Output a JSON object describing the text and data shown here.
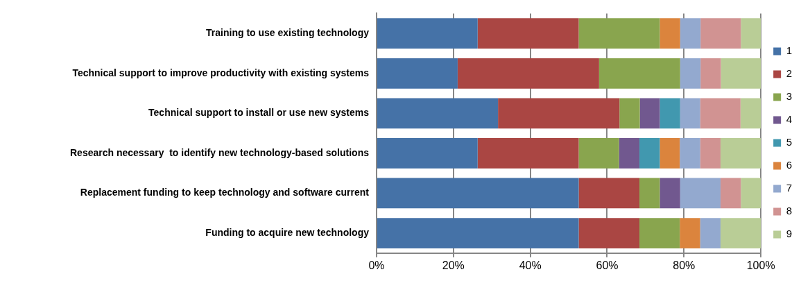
{
  "chart_data": {
    "type": "bar",
    "orientation": "horizontal",
    "stacked": true,
    "categories": [
      "Training to use existing technology",
      "Technical support to improve productivity with existing systems",
      "Technical support to install or use new systems",
      "Research necessary  to identify new technology-based solutions",
      "Replacement funding to keep technology and software current",
      "Funding to acquire new technology"
    ],
    "series": [
      {
        "name": "1",
        "color": "#4572a7",
        "values": [
          26.3,
          21.1,
          31.6,
          26.3,
          52.6,
          52.6
        ]
      },
      {
        "name": "2",
        "color": "#aa4643",
        "values": [
          26.3,
          36.8,
          31.6,
          26.3,
          15.8,
          15.8
        ]
      },
      {
        "name": "3",
        "color": "#89a54e",
        "values": [
          21.1,
          21.1,
          5.3,
          10.5,
          5.3,
          10.5
        ]
      },
      {
        "name": "4",
        "color": "#71588f",
        "values": [
          0,
          0,
          5.2,
          5.3,
          5.3,
          0
        ]
      },
      {
        "name": "5",
        "color": "#4198af",
        "values": [
          0,
          0,
          5.3,
          5.3,
          0,
          0
        ]
      },
      {
        "name": "6",
        "color": "#db843d",
        "values": [
          5.3,
          0,
          0,
          5.2,
          0,
          5.3
        ]
      },
      {
        "name": "7",
        "color": "#93a9cf",
        "values": [
          5.3,
          5.3,
          5.2,
          5.3,
          10.5,
          5.3
        ]
      },
      {
        "name": "8",
        "color": "#d19392",
        "values": [
          10.5,
          5.3,
          10.5,
          5.3,
          5.3,
          0
        ]
      },
      {
        "name": "9",
        "color": "#b9cd96",
        "values": [
          5.2,
          10.4,
          5.3,
          10.5,
          5.2,
          10.5
        ]
      }
    ],
    "xlim": [
      0,
      100
    ],
    "xticks": [
      {
        "value": 0,
        "label": "0%"
      },
      {
        "value": 20,
        "label": "20%"
      },
      {
        "value": 40,
        "label": "40%"
      },
      {
        "value": 60,
        "label": "60%"
      },
      {
        "value": 80,
        "label": "80%"
      },
      {
        "value": 100,
        "label": "100%"
      }
    ],
    "grid": "x",
    "legend": "right"
  }
}
